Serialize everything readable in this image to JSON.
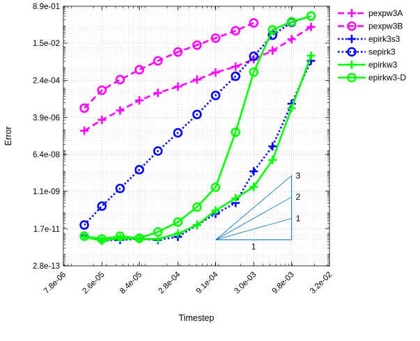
{
  "chart_data": {
    "type": "line",
    "xlabel": "Timestep",
    "ylabel": "Error",
    "xscale": "log",
    "yscale": "log",
    "xlim": [
      7.8e-06,
      0.032
    ],
    "ylim": [
      2.8e-13,
      0.89
    ],
    "grid": true,
    "legend_position": "outside-top-right",
    "xticks": [
      "7.8e-06",
      "2.6e-05",
      "8.4e-05",
      "2.8e-04",
      "9.1e-04",
      "3.0e-03",
      "9.8e-03",
      "3.2e-02"
    ],
    "yticks": [
      "8.9e-01",
      "1.5e-02",
      "2.4e-04",
      "3.9e-06",
      "6.4e-08",
      "1.1e-09",
      "1.7e-11",
      "2.8e-13"
    ],
    "series": [
      {
        "name": "pexpw3A",
        "color": "#ff00ff",
        "line_style": "dashed",
        "marker": "plus",
        "x": [
          1.5e-05,
          2.6e-05,
          4.6e-05,
          8.4e-05,
          0.00015,
          0.00028,
          0.00051,
          0.00091,
          0.0017,
          0.003,
          0.0054,
          0.0098,
          0.018
        ],
        "y": [
          9e-07,
          3e-06,
          8.5e-06,
          2.6e-05,
          6e-05,
          0.00012,
          0.00026,
          0.00058,
          0.0011,
          0.0025,
          0.0065,
          0.023,
          0.09
        ]
      },
      {
        "name": "pexpw3B",
        "color": "#ff00ff",
        "line_style": "dashed",
        "marker": "circle",
        "x": [
          1.5e-05,
          2.6e-05,
          4.6e-05,
          8.4e-05,
          0.00015,
          0.00028,
          0.00051,
          0.00091,
          0.0017,
          0.003
        ],
        "y": [
          1.1e-05,
          8e-05,
          0.00026,
          0.00078,
          0.0021,
          0.0056,
          0.012,
          0.026,
          0.059,
          0.14
        ]
      },
      {
        "name": "epirk3s3",
        "color": "#0000ff",
        "line_style": "dotted",
        "marker": "plus",
        "x": [
          1.5e-05,
          2.6e-05,
          4.6e-05,
          8.4e-05,
          0.00015,
          0.00028,
          0.00051,
          0.00091,
          0.0017,
          0.003,
          0.0054,
          0.0098,
          0.018
        ],
        "y": [
          8e-12,
          4.5e-12,
          5e-12,
          5.5e-12,
          5e-12,
          7e-12,
          2.6e-11,
          9e-11,
          3e-10,
          1e-08,
          1.6e-07,
          1.8e-05,
          0.0021
        ]
      },
      {
        "name": "sepirk3",
        "color": "#0000ff",
        "line_style": "dotted",
        "marker": "circle",
        "x": [
          1.5e-05,
          2.6e-05,
          4.6e-05,
          8.4e-05,
          0.00015,
          0.00028,
          0.00051,
          0.00091,
          0.0017,
          0.003,
          0.0054,
          0.0098,
          0.018
        ],
        "y": [
          2.6e-11,
          2.1e-10,
          1.5e-09,
          1.2e-08,
          9.5e-08,
          7.2e-07,
          5.5e-06,
          4.5e-05,
          0.00038,
          0.0035,
          0.036,
          0.15,
          0.3
        ]
      },
      {
        "name": "epirkw3",
        "color": "#00ff00",
        "line_style": "solid",
        "marker": "plus",
        "x": [
          1.5e-05,
          2.6e-05,
          4.6e-05,
          8.4e-05,
          0.00015,
          0.00028,
          0.00051,
          0.00091,
          0.0017,
          0.003,
          0.0054,
          0.0098,
          0.018
        ],
        "y": [
          7e-12,
          4.5e-12,
          6e-12,
          5.5e-12,
          5.5e-12,
          1e-11,
          2.6e-11,
          1.3e-10,
          5e-10,
          1.8e-09,
          3.5e-08,
          1.1e-05,
          0.0037
        ]
      },
      {
        "name": "epirkw3-D",
        "color": "#00ff00",
        "line_style": "solid",
        "marker": "circle",
        "x": [
          1.5e-05,
          2.6e-05,
          4.6e-05,
          8.4e-05,
          0.00015,
          0.00028,
          0.00051,
          0.00091,
          0.0017,
          0.003,
          0.0054,
          0.0098,
          0.018
        ],
        "y": [
          7.5e-12,
          5.5e-12,
          7.5e-12,
          6e-12,
          1.2e-11,
          3.6e-11,
          1.9e-10,
          1.7e-09,
          7.6e-07,
          0.0006,
          0.065,
          0.16,
          0.3
        ]
      }
    ],
    "slope_triangle": {
      "color": "#0072bd",
      "x_range": [
        0.00091,
        0.0098
      ],
      "y_base": 5e-12,
      "slopes": [
        1,
        2,
        3
      ],
      "labels": {
        "base": "1",
        "slope1": "1",
        "slope2": "2",
        "slope3": "3"
      }
    }
  }
}
